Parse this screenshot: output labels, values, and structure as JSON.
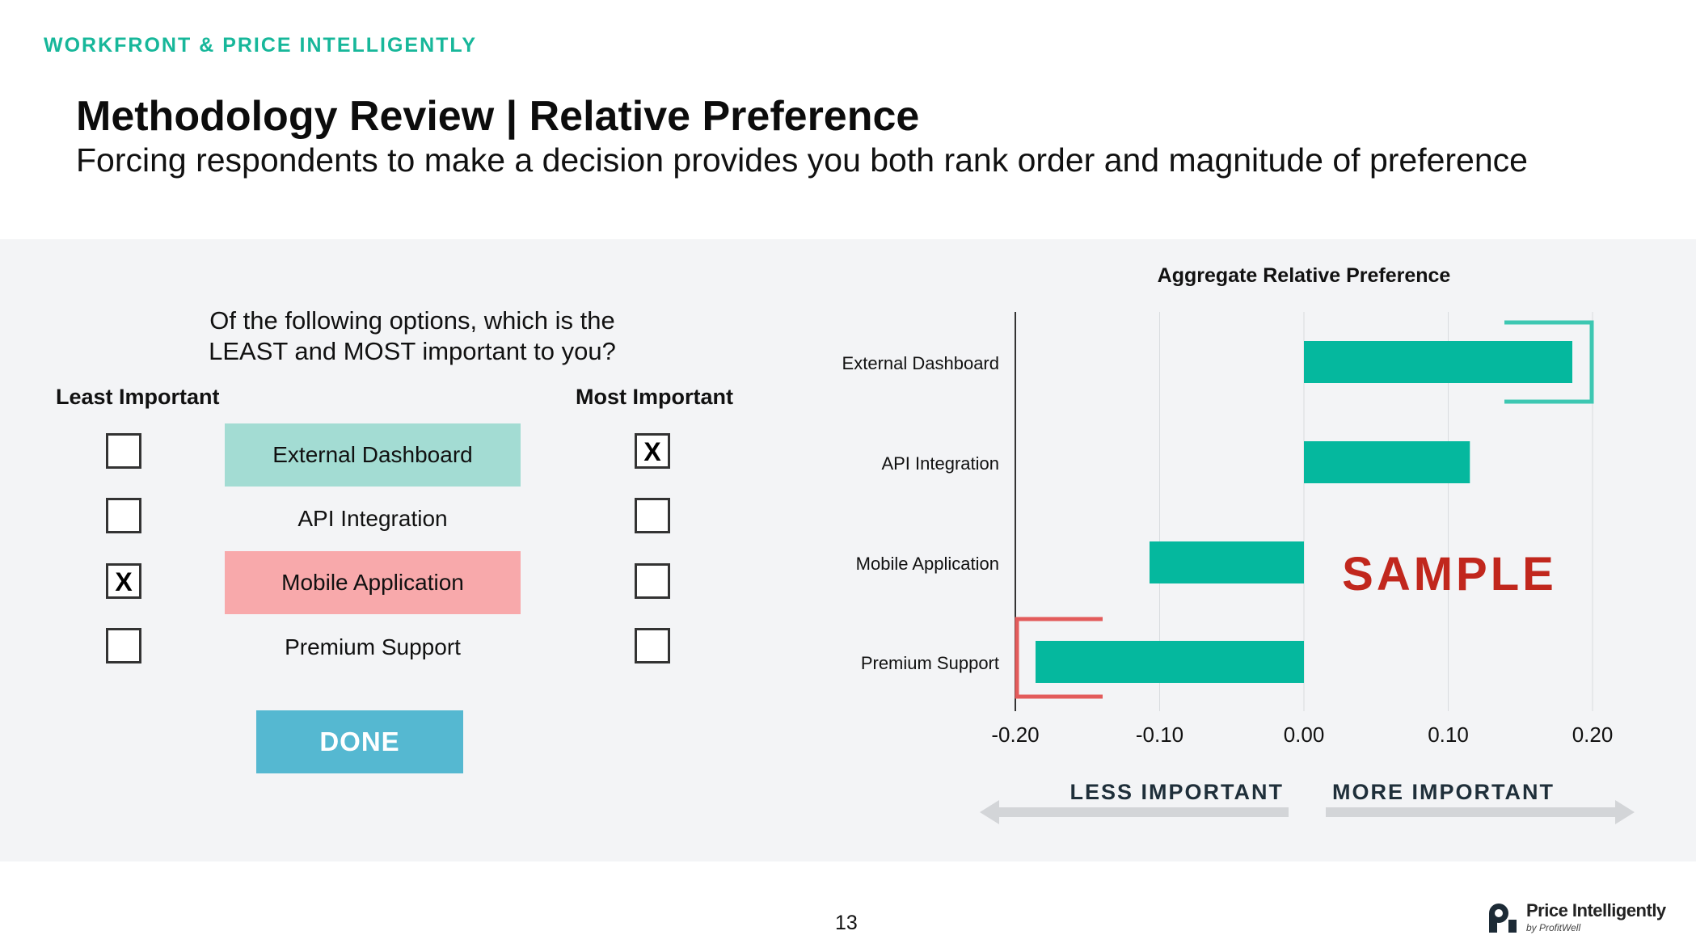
{
  "header": {
    "kicker": "WORKFRONT & PRICE INTELLIGENTLY",
    "title": "Methodology Review | Relative Preference",
    "subtitle": "Forcing respondents to make a decision provides you both rank order and magnitude of preference"
  },
  "survey": {
    "question_line1": "Of the following options, which is the",
    "question_line2": "LEAST and MOST important to you?",
    "least_label": "Least Important",
    "most_label": "Most Important",
    "options": [
      {
        "label": "External Dashboard",
        "least": "",
        "most": "X",
        "highlight": "#a3dcd3"
      },
      {
        "label": "API Integration",
        "least": "",
        "most": "",
        "highlight": ""
      },
      {
        "label": "Mobile Application",
        "least": "X",
        "most": "",
        "highlight": "#f8a9ab"
      },
      {
        "label": "Premium Support",
        "least": "",
        "most": "",
        "highlight": ""
      }
    ],
    "done_label": "DONE"
  },
  "chart_data": {
    "type": "bar",
    "orientation": "horizontal",
    "title": "Aggregate Relative Preference",
    "categories": [
      "External Dashboard",
      "API Integration",
      "Mobile Application",
      "Premium Support"
    ],
    "values": [
      0.186,
      0.115,
      -0.107,
      -0.186
    ],
    "xlim": [
      -0.2,
      0.2
    ],
    "xticks": [
      -0.2,
      -0.1,
      0.0,
      0.1,
      0.2
    ],
    "xtick_labels": [
      "-0.20",
      "-0.10",
      "0.00",
      "0.10",
      "0.20"
    ],
    "grid": true,
    "bar_color": "#05b89e",
    "highlight_most": "External Dashboard",
    "highlight_least": "Premium Support",
    "highlight_most_color": "#3dc7b2",
    "highlight_least_color": "#e35b5b",
    "less_label": "LESS IMPORTANT",
    "more_label": "MORE IMPORTANT",
    "watermark": "SAMPLE",
    "watermark_color": "#c1271d"
  },
  "footer": {
    "page_number": "13",
    "logo_name": "Price Intelligently",
    "logo_sub": "by ProfitWell"
  }
}
